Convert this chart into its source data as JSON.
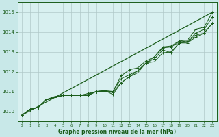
{
  "bg_color": "#c8e8e8",
  "plot_bg_color": "#d8f0f0",
  "grid_color": "#b0c8c8",
  "line_color": "#1a5c1a",
  "xlabel": "Graphe pression niveau de la mer (hPa)",
  "ylim": [
    1009.5,
    1015.5
  ],
  "xlim": [
    -0.5,
    23.5
  ],
  "yticks": [
    1010,
    1011,
    1012,
    1013,
    1014,
    1015
  ],
  "xticks": [
    0,
    1,
    2,
    3,
    4,
    5,
    6,
    7,
    8,
    9,
    10,
    11,
    12,
    13,
    14,
    15,
    16,
    17,
    18,
    19,
    20,
    21,
    22,
    23
  ],
  "series_with_markers": [
    [
      1009.8,
      1010.1,
      1010.2,
      1010.6,
      1010.75,
      1010.8,
      1010.8,
      1010.8,
      1010.85,
      1011.0,
      1011.05,
      1011.0,
      1011.8,
      1012.1,
      1012.2,
      1012.55,
      1012.75,
      1013.25,
      1013.3,
      1013.55,
      1013.6,
      1014.15,
      1014.25,
      1015.0
    ],
    [
      1009.8,
      1010.1,
      1010.2,
      1010.6,
      1010.7,
      1010.8,
      1010.8,
      1010.8,
      1010.9,
      1011.0,
      1011.0,
      1011.0,
      1011.65,
      1011.85,
      1012.05,
      1012.45,
      1012.75,
      1013.2,
      1013.25,
      1013.5,
      1013.55,
      1013.95,
      1014.15,
      1014.75
    ],
    [
      1009.8,
      1010.1,
      1010.2,
      1010.6,
      1010.7,
      1010.8,
      1010.8,
      1010.8,
      1010.8,
      1011.0,
      1011.05,
      1010.85,
      1011.45,
      1011.75,
      1011.95,
      1012.45,
      1012.5,
      1012.95,
      1013.0,
      1013.45,
      1013.5,
      1013.85,
      1013.95,
      1014.45
    ],
    [
      1009.8,
      1010.1,
      1010.2,
      1010.6,
      1010.7,
      1010.8,
      1010.8,
      1010.8,
      1010.8,
      1011.0,
      1011.0,
      1010.95,
      1011.45,
      1011.75,
      1012.05,
      1012.45,
      1012.65,
      1013.1,
      1012.95,
      1013.45,
      1013.45,
      1013.75,
      1013.95,
      1014.45
    ]
  ],
  "straight_line": [
    1009.8,
    1015.0
  ],
  "straight_line_x": [
    0,
    23
  ]
}
